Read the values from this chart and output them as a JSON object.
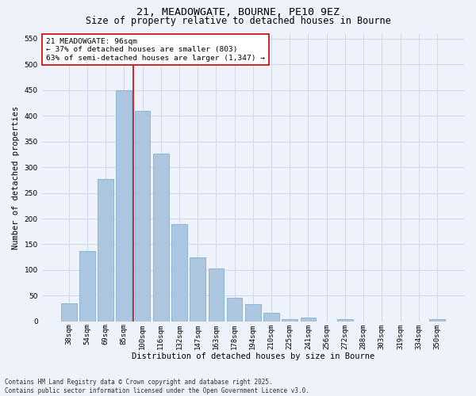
{
  "title_line1": "21, MEADOWGATE, BOURNE, PE10 9EZ",
  "title_line2": "Size of property relative to detached houses in Bourne",
  "xlabel": "Distribution of detached houses by size in Bourne",
  "ylabel": "Number of detached properties",
  "categories": [
    "38sqm",
    "54sqm",
    "69sqm",
    "85sqm",
    "100sqm",
    "116sqm",
    "132sqm",
    "147sqm",
    "163sqm",
    "178sqm",
    "194sqm",
    "210sqm",
    "225sqm",
    "241sqm",
    "256sqm",
    "272sqm",
    "288sqm",
    "303sqm",
    "319sqm",
    "334sqm",
    "350sqm"
  ],
  "values": [
    35,
    137,
    277,
    450,
    410,
    327,
    190,
    125,
    103,
    46,
    33,
    17,
    4,
    7,
    0,
    4,
    0,
    0,
    0,
    0,
    4
  ],
  "bar_color": "#adc6e0",
  "bar_edge_color": "#6fa8d0",
  "grid_color": "#cdd6e8",
  "bg_color": "#eef2fa",
  "vline_color": "#cc0000",
  "annotation_text": "21 MEADOWGATE: 96sqm\n← 37% of detached houses are smaller (803)\n63% of semi-detached houses are larger (1,347) →",
  "annotation_box_color": "#ffffff",
  "annotation_box_edge": "#cc0000",
  "ylim": [
    0,
    560
  ],
  "yticks": [
    0,
    50,
    100,
    150,
    200,
    250,
    300,
    350,
    400,
    450,
    500,
    550
  ],
  "footer": "Contains HM Land Registry data © Crown copyright and database right 2025.\nContains public sector information licensed under the Open Government Licence v3.0.",
  "title_fontsize": 9.5,
  "subtitle_fontsize": 8.5,
  "axis_label_fontsize": 7.5,
  "tick_fontsize": 6.5,
  "annotation_fontsize": 6.8,
  "footer_fontsize": 5.5
}
